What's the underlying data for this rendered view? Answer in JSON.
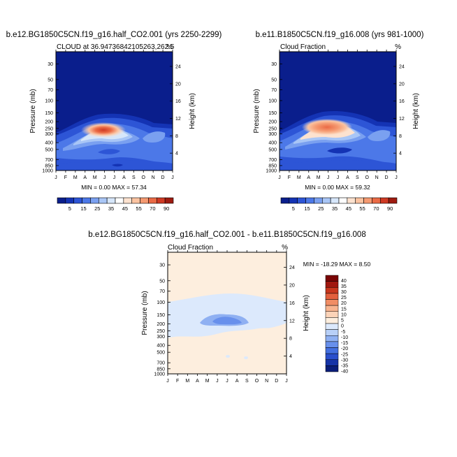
{
  "palettes": {
    "abs": [
      "#0a1e8c",
      "#1433b4",
      "#2d55d6",
      "#4c78e8",
      "#7aa0f0",
      "#a9c6f6",
      "#d6e6fa",
      "#ffffff",
      "#fde2cf",
      "#fbc3a1",
      "#f59a71",
      "#ea6a45",
      "#cf3a24",
      "#9e1b10"
    ],
    "diff": [
      "#0a1e7a",
      "#1634a8",
      "#2a4fcc",
      "#4470e0",
      "#6890ec",
      "#8fb0f2",
      "#b8d0f8",
      "#dce9fc",
      "#fdeede",
      "#fbd3b8",
      "#f8b48f",
      "#f18d64",
      "#e3603d",
      "#c8361d",
      "#a0170f",
      "#7a0505"
    ]
  },
  "chart_data": [
    {
      "type": "heatmap",
      "title": "b.e12.BG1850C5CN.f19_g16.half_CO2.001 (yrs 2250-2299)",
      "subtitle_left": "CLOUD at 36.94736842105263,262.5",
      "subtitle_right": "%",
      "ylabel": "Pressure (mb)",
      "ylabel_right": "Height (km)",
      "x_ticks": [
        "J",
        "F",
        "M",
        "A",
        "M",
        "J",
        "J",
        "A",
        "S",
        "O",
        "N",
        "D",
        "J"
      ],
      "y_ticks": [
        30,
        50,
        70,
        100,
        150,
        200,
        250,
        300,
        400,
        500,
        700,
        850,
        1000
      ],
      "y_ticks_right": [
        24,
        20,
        16,
        12,
        8,
        4
      ],
      "ylim": [
        1000,
        20
      ],
      "stats": "MIN =   0.00 MAX =  57.34",
      "colorbar": {
        "labels": [
          "5",
          "15",
          "25",
          "35",
          "45",
          "55",
          "70",
          "90"
        ],
        "palette": "abs"
      },
      "cloud": {
        "low_month": 0,
        "high_month": 12,
        "core_month": 5.0,
        "core_pressure": 240,
        "core_value": 57
      }
    },
    {
      "type": "heatmap",
      "title": "b.e11.B1850C5CN.f19_g16.008 (yrs 981-1000)",
      "subtitle_left": "Cloud Fraction",
      "subtitle_right": "%",
      "ylabel": "Pressure (mb)",
      "ylabel_right": "Height (km)",
      "x_ticks": [
        "J",
        "F",
        "M",
        "A",
        "M",
        "J",
        "J",
        "A",
        "S",
        "O",
        "N",
        "D",
        "J"
      ],
      "y_ticks": [
        30,
        50,
        70,
        100,
        150,
        200,
        250,
        300,
        400,
        500,
        700,
        850,
        1000
      ],
      "y_ticks_right": [
        24,
        20,
        16,
        12,
        8,
        4
      ],
      "ylim": [
        1000,
        20
      ],
      "stats": "MIN =   0.00 MAX =  59.32",
      "colorbar": {
        "labels": [
          "5",
          "15",
          "25",
          "35",
          "45",
          "55",
          "70",
          "90"
        ],
        "palette": "abs"
      },
      "cloud": {
        "low_month": 0,
        "high_month": 12,
        "core_month": 4.6,
        "core_pressure": 245,
        "core_value": 59
      }
    },
    {
      "type": "heatmap",
      "title": "b.e12.BG1850C5CN.f19_g16.half_CO2.001 - b.e11.B1850C5CN.f19_g16.008",
      "subtitle_left": "Cloud Fraction",
      "subtitle_right": "%",
      "ylabel": "Pressure (mb)",
      "ylabel_right": "Height (km)",
      "x_ticks": [
        "J",
        "F",
        "M",
        "A",
        "M",
        "J",
        "J",
        "A",
        "S",
        "O",
        "N",
        "D",
        "J"
      ],
      "y_ticks": [
        30,
        50,
        70,
        100,
        150,
        200,
        250,
        300,
        400,
        500,
        700,
        850,
        1000
      ],
      "y_ticks_right": [
        24,
        20,
        16,
        12,
        8,
        4
      ],
      "ylim": [
        1000,
        20
      ],
      "stats": "MIN = -18.29 MAX =   8.50",
      "colorbar": {
        "labels": [
          "40",
          "35",
          "30",
          "25",
          "20",
          "15",
          "10",
          "5",
          "0",
          "-5",
          "-10",
          "-15",
          "-20",
          "-25",
          "-30",
          "-35",
          "-40"
        ],
        "palette": "diff"
      }
    }
  ]
}
